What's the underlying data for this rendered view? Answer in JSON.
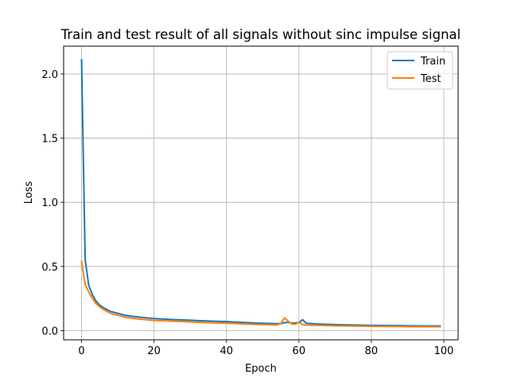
{
  "chart_data": {
    "type": "line",
    "title": "Train and test result of all signals without sinc impulse signal",
    "xlabel": "Epoch",
    "ylabel": "Loss",
    "xlim": [
      -4.95,
      103.95
    ],
    "ylim": [
      -0.0715,
      2.2165
    ],
    "xticks": [
      0,
      20,
      40,
      60,
      80,
      100
    ],
    "yticks": [
      0.0,
      0.5,
      1.0,
      1.5,
      2.0
    ],
    "xtick_labels": [
      "0",
      "20",
      "40",
      "60",
      "80",
      "100"
    ],
    "ytick_labels": [
      "0.0",
      "0.5",
      "1.0",
      "1.5",
      "2.0"
    ],
    "grid": true,
    "legend_position": "top-right",
    "series": [
      {
        "name": "Train",
        "color": "#1f77b4",
        "x": [
          0,
          1,
          2,
          3,
          4,
          5,
          6,
          7,
          8,
          10,
          12,
          15,
          20,
          25,
          30,
          35,
          40,
          45,
          50,
          54,
          55,
          56,
          57,
          58,
          59,
          60,
          61,
          62,
          65,
          70,
          80,
          90,
          99
        ],
        "y": [
          2.11,
          0.55,
          0.35,
          0.28,
          0.23,
          0.2,
          0.18,
          0.165,
          0.15,
          0.135,
          0.12,
          0.108,
          0.094,
          0.087,
          0.081,
          0.075,
          0.07,
          0.063,
          0.057,
          0.054,
          0.055,
          0.062,
          0.065,
          0.058,
          0.06,
          0.063,
          0.085,
          0.058,
          0.052,
          0.047,
          0.041,
          0.038,
          0.036
        ]
      },
      {
        "name": "Test",
        "color": "#ff7f0e",
        "x": [
          0,
          1,
          2,
          3,
          4,
          5,
          6,
          7,
          8,
          10,
          12,
          15,
          20,
          25,
          30,
          35,
          40,
          45,
          50,
          54,
          55,
          56,
          57,
          58,
          59,
          60,
          61,
          62,
          65,
          70,
          80,
          90,
          99
        ],
        "y": [
          0.54,
          0.36,
          0.3,
          0.25,
          0.21,
          0.185,
          0.165,
          0.15,
          0.135,
          0.12,
          0.105,
          0.093,
          0.08,
          0.074,
          0.068,
          0.062,
          0.058,
          0.052,
          0.047,
          0.045,
          0.055,
          0.1,
          0.075,
          0.052,
          0.05,
          0.065,
          0.048,
          0.043,
          0.042,
          0.038,
          0.034,
          0.031,
          0.03
        ]
      }
    ]
  }
}
